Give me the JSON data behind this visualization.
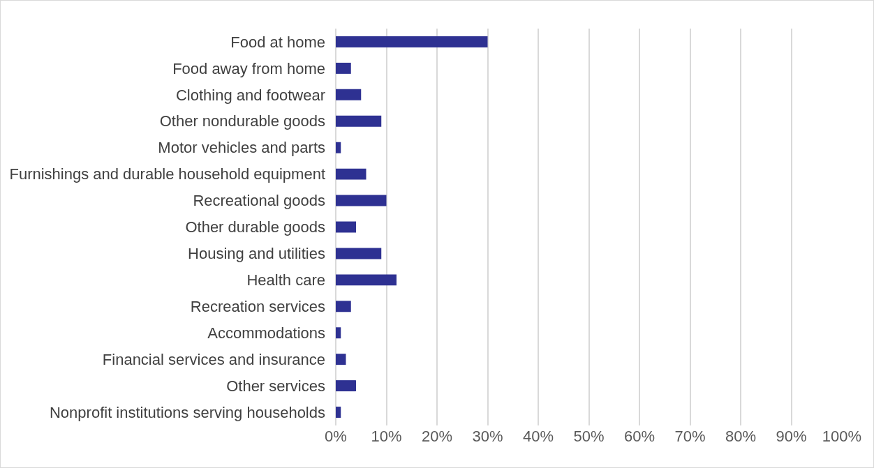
{
  "chart_data": {
    "type": "bar",
    "orientation": "horizontal",
    "categories": [
      "Food at home",
      "Food away from home",
      "Clothing and footwear",
      "Other nondurable goods",
      "Motor vehicles and parts",
      "Furnishings and durable household equipment",
      "Recreational goods",
      "Other durable goods",
      "Housing and utilities",
      "Health care",
      "Recreation services",
      "Accommodations",
      "Financial services and insurance",
      "Other services",
      "Nonprofit institutions serving households"
    ],
    "values": [
      30,
      3,
      5,
      9,
      1,
      6,
      10,
      4,
      9,
      12,
      3,
      1,
      2,
      4,
      1
    ],
    "color": "#2e3192",
    "xlim": [
      0,
      100
    ],
    "xticks": [
      {
        "value": 0,
        "label": "0%"
      },
      {
        "value": 10,
        "label": "10%"
      },
      {
        "value": 20,
        "label": "20%"
      },
      {
        "value": 30,
        "label": "30%"
      },
      {
        "value": 40,
        "label": "40%"
      },
      {
        "value": 50,
        "label": "50%"
      },
      {
        "value": 60,
        "label": "60%"
      },
      {
        "value": 70,
        "label": "70%"
      },
      {
        "value": 80,
        "label": "80%"
      },
      {
        "value": 90,
        "label": "90%"
      },
      {
        "value": 100,
        "label": "100%"
      }
    ],
    "grid": "x"
  }
}
